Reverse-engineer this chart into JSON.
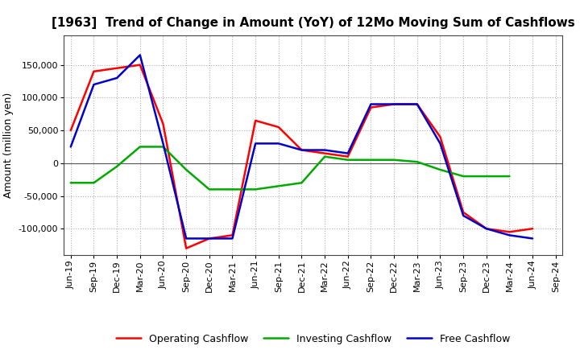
{
  "title": "[1963]  Trend of Change in Amount (YoY) of 12Mo Moving Sum of Cashflows",
  "ylabel": "Amount (million yen)",
  "background_color": "#ffffff",
  "grid_color": "#b0b0b0",
  "x_labels": [
    "Jun-19",
    "Sep-19",
    "Dec-19",
    "Mar-20",
    "Jun-20",
    "Sep-20",
    "Dec-20",
    "Mar-21",
    "Jun-21",
    "Sep-21",
    "Dec-21",
    "Mar-22",
    "Jun-22",
    "Sep-22",
    "Dec-22",
    "Mar-23",
    "Jun-23",
    "Sep-23",
    "Dec-23",
    "Mar-24",
    "Jun-24",
    "Sep-24"
  ],
  "operating": [
    50000,
    140000,
    145000,
    150000,
    60000,
    -130000,
    -115000,
    -110000,
    65000,
    55000,
    20000,
    15000,
    10000,
    85000,
    90000,
    90000,
    40000,
    -75000,
    -100000,
    -105000,
    -100000,
    null
  ],
  "investing": [
    -30000,
    -30000,
    -5000,
    25000,
    25000,
    -10000,
    -40000,
    -40000,
    -40000,
    -35000,
    -30000,
    10000,
    5000,
    5000,
    5000,
    2000,
    -10000,
    -20000,
    -20000,
    -20000,
    null,
    null
  ],
  "free": [
    25000,
    120000,
    130000,
    165000,
    30000,
    -115000,
    -115000,
    -115000,
    30000,
    30000,
    20000,
    20000,
    15000,
    90000,
    90000,
    90000,
    30000,
    -80000,
    -100000,
    -110000,
    -115000,
    null
  ],
  "ylim": [
    -140000,
    195000
  ],
  "yticks": [
    -100000,
    -50000,
    0,
    50000,
    100000,
    150000
  ],
  "operating_color": "#ff0000",
  "investing_color": "#00aa00",
  "free_color": "#0000cc",
  "line_width": 1.8,
  "title_fontsize": 11,
  "ylabel_fontsize": 9,
  "tick_fontsize": 8,
  "legend_fontsize": 9
}
